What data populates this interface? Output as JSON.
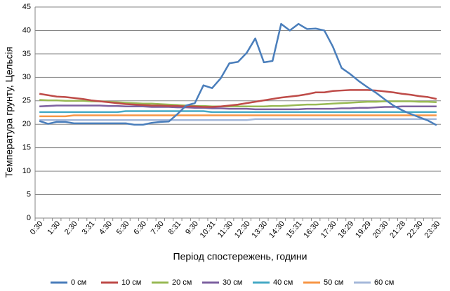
{
  "chart_data": {
    "type": "line",
    "y_label": "Температура грунту, Цельсія",
    "x_label": "Період спостережень, години",
    "categories": [
      "0:30",
      null,
      "1:30",
      null,
      "2:30",
      null,
      "3:31",
      null,
      "4:30",
      null,
      "5:30",
      null,
      "6:30",
      null,
      "7:30",
      null,
      "8:31",
      null,
      "9:30",
      null,
      "10:31",
      null,
      "11:30",
      null,
      "12:30",
      null,
      "13:30",
      null,
      "14:30",
      null,
      "15:31",
      null,
      "16:30",
      null,
      "17:30",
      null,
      "18:29",
      null,
      "19:29",
      null,
      "20:30",
      null,
      "21:28",
      null,
      "22:30",
      null,
      "23:30"
    ],
    "ylim": [
      0,
      45
    ],
    "yticks": [
      0,
      5,
      10,
      15,
      20,
      25,
      30,
      35,
      40,
      45
    ],
    "grid": true,
    "legend": "bottom",
    "series": [
      {
        "name": "0 см",
        "color": "#4a7ebb",
        "values": [
          20.7,
          20.1,
          20.5,
          20.5,
          20.2,
          20.2,
          20.2,
          20.2,
          20.2,
          20.2,
          20.2,
          19.9,
          19.9,
          20.3,
          20.5,
          20.6,
          22.2,
          24,
          24.5,
          28.3,
          27.7,
          29.8,
          33,
          33.3,
          35.2,
          38.3,
          33.2,
          33.5,
          41.4,
          40,
          41.4,
          40.3,
          40.4,
          40,
          36.5,
          32,
          30.7,
          29.2,
          27.9,
          26.7,
          25.3,
          24,
          23,
          22.2,
          21.5,
          20.8,
          19.8
        ]
      },
      {
        "name": "10 см",
        "color": "#be4b48",
        "values": [
          26.5,
          26.2,
          25.9,
          25.8,
          25.6,
          25.4,
          25.1,
          24.9,
          24.7,
          24.5,
          24.3,
          24.2,
          24.1,
          24.0,
          24.0,
          23.9,
          23.9,
          23.8,
          23.8,
          23.7,
          23.7,
          23.8,
          24.0,
          24.2,
          24.5,
          24.8,
          25.1,
          25.4,
          25.7,
          25.9,
          26.1,
          26.4,
          26.8,
          26.8,
          27.1,
          27.2,
          27.3,
          27.3,
          27.3,
          27.2,
          27.0,
          26.8,
          26.5,
          26.3,
          26.0,
          25.8,
          25.4
        ]
      },
      {
        "name": "20 см",
        "color": "#98b954",
        "values": [
          25.2,
          25.1,
          25.1,
          25.0,
          25.0,
          25.0,
          24.9,
          24.9,
          24.8,
          24.7,
          24.6,
          24.5,
          24.4,
          24.4,
          24.3,
          24.2,
          24.1,
          24.0,
          23.9,
          23.9,
          23.8,
          23.8,
          23.8,
          23.8,
          23.8,
          23.8,
          23.8,
          23.9,
          23.9,
          24.0,
          24.1,
          24.2,
          24.2,
          24.3,
          24.4,
          24.5,
          24.6,
          24.7,
          24.8,
          24.8,
          24.9,
          24.9,
          24.9,
          24.9,
          24.8,
          24.8,
          24.7
        ]
      },
      {
        "name": "30 см",
        "color": "#7d60a0",
        "values": [
          23.8,
          23.9,
          24.0,
          24.0,
          24.0,
          24.0,
          24.0,
          24.0,
          23.9,
          23.9,
          23.8,
          23.8,
          23.8,
          23.7,
          23.7,
          23.7,
          23.6,
          23.6,
          23.5,
          23.5,
          23.4,
          23.4,
          23.3,
          23.3,
          23.3,
          23.2,
          23.2,
          23.2,
          23.2,
          23.2,
          23.2,
          23.3,
          23.3,
          23.3,
          23.3,
          23.4,
          23.4,
          23.5,
          23.5,
          23.6,
          23.7,
          23.7,
          23.8,
          23.8,
          23.8,
          23.8,
          23.8
        ]
      },
      {
        "name": "40 см",
        "color": "#46aac5",
        "values": [
          22.6,
          22.6,
          22.6,
          22.6,
          22.6,
          22.6,
          22.6,
          22.6,
          22.6,
          22.6,
          22.8,
          22.8,
          22.8,
          22.8,
          22.8,
          22.8,
          22.8,
          22.8,
          22.8,
          22.8,
          22.6,
          22.6,
          22.6,
          22.6,
          22.6,
          22.6,
          22.6,
          22.6,
          22.6,
          22.6,
          22.6,
          22.6,
          22.6,
          22.6,
          22.6,
          22.6,
          22.6,
          22.6,
          22.6,
          22.6,
          22.6,
          22.6,
          22.6,
          22.6,
          22.6,
          22.6,
          22.6
        ]
      },
      {
        "name": "50 см",
        "color": "#f79646",
        "values": [
          21.7,
          21.7,
          21.7,
          21.7,
          21.9,
          21.9,
          21.9,
          21.9,
          21.9,
          21.9,
          21.9,
          21.9,
          21.9,
          21.9,
          21.9,
          21.9,
          21.9,
          21.9,
          21.9,
          21.9,
          21.9,
          21.9,
          21.9,
          21.9,
          21.9,
          21.9,
          21.9,
          21.9,
          21.9,
          21.9,
          21.9,
          21.9,
          21.9,
          21.9,
          21.9,
          21.9,
          21.9,
          21.9,
          21.9,
          21.9,
          21.9,
          21.9,
          21.9,
          21.9,
          21.9,
          21.9,
          21.9
        ]
      },
      {
        "name": "60 см",
        "color": "#a5b8da",
        "values": [
          20.9,
          20.9,
          20.9,
          20.9,
          20.9,
          20.9,
          20.9,
          20.9,
          20.9,
          20.9,
          20.9,
          20.9,
          20.9,
          20.9,
          20.9,
          20.9,
          20.9,
          20.9,
          20.9,
          20.9,
          20.9,
          20.9,
          20.9,
          20.9,
          20.9,
          21.1,
          21.1,
          21.1,
          21.1,
          21.1,
          21.1,
          21.1,
          21.1,
          21.1,
          21.1,
          21.1,
          21.1,
          21.1,
          21.1,
          21.1,
          21.1,
          21.1,
          21.1,
          21.1,
          21.1,
          21.1,
          21.1
        ]
      }
    ]
  }
}
